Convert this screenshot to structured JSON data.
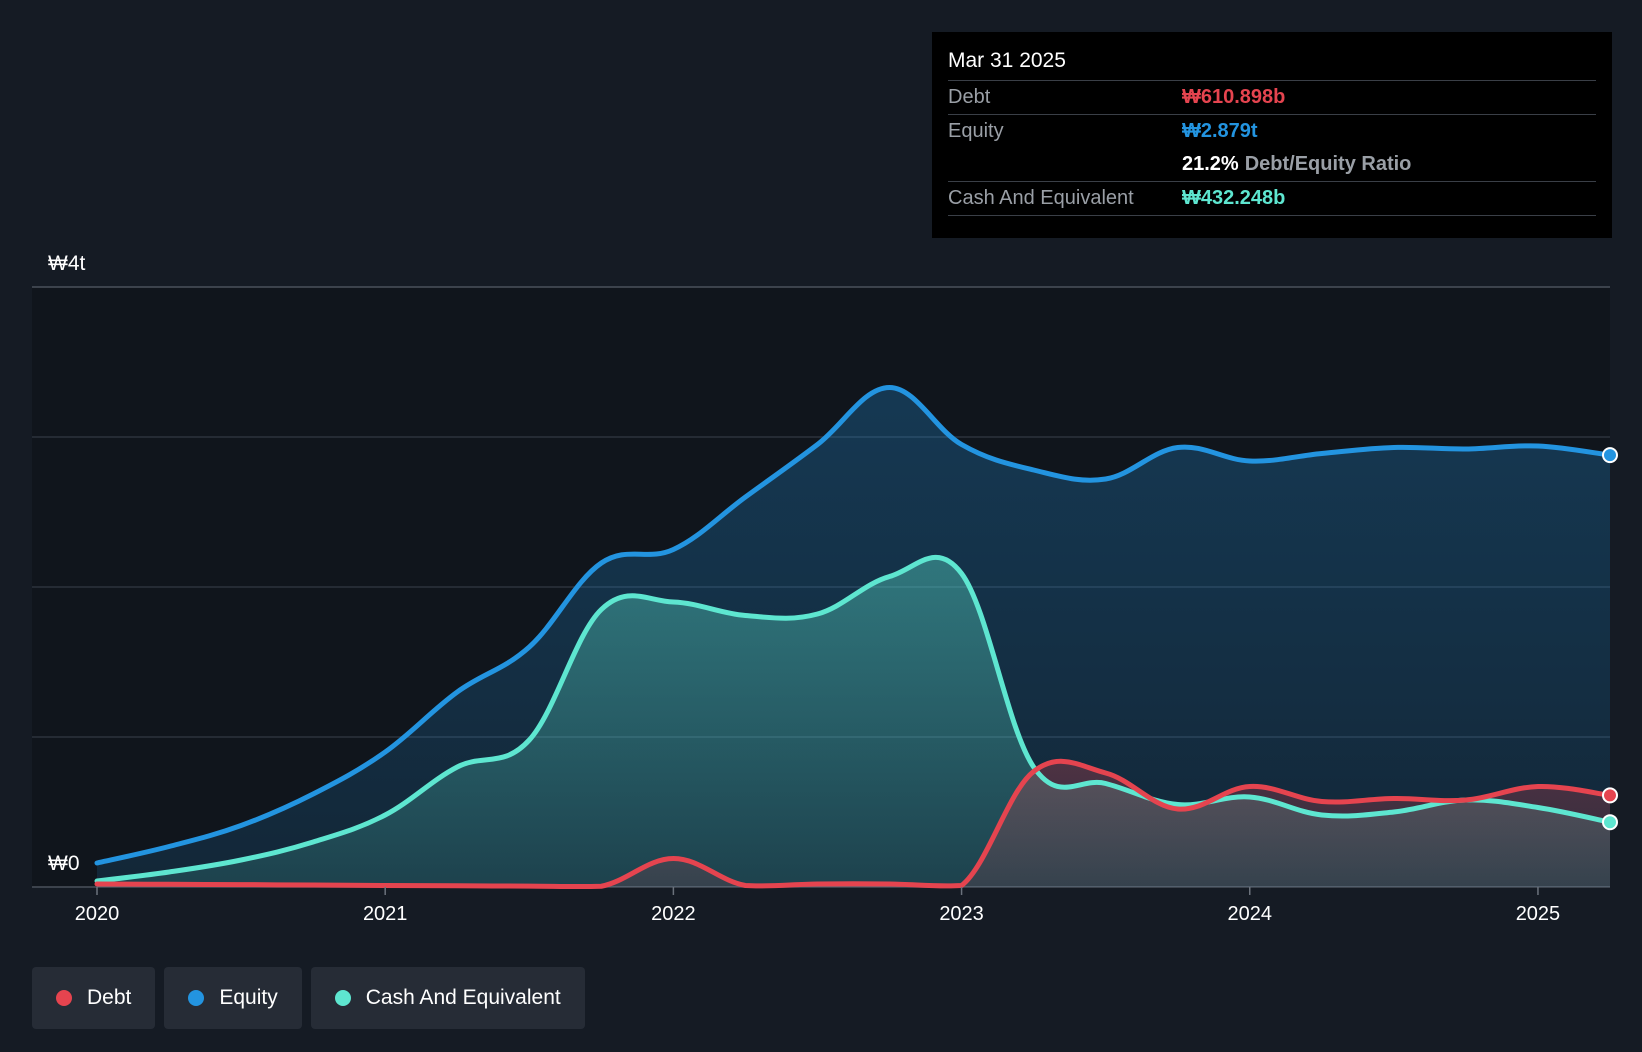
{
  "colors": {
    "debt": "#e5444f",
    "equity": "#2394e0",
    "cash": "#5ee6d0",
    "background": "#151b24",
    "grid": "#2c333d"
  },
  "tooltip": {
    "date": "Mar 31 2025",
    "debt_label": "Debt",
    "debt_value": "₩610.898b",
    "equity_label": "Equity",
    "equity_value": "₩2.879t",
    "ratio_value": "21.2%",
    "ratio_label": "Debt/Equity Ratio",
    "cash_label": "Cash And Equivalent",
    "cash_value": "₩432.248b"
  },
  "legend": [
    {
      "label": "Debt",
      "color": "#e5444f"
    },
    {
      "label": "Equity",
      "color": "#2394e0"
    },
    {
      "label": "Cash And Equivalent",
      "color": "#5ee6d0"
    }
  ],
  "chart_data": {
    "type": "area",
    "title": "",
    "xlabel": "",
    "ylabel": "",
    "y_unit": "₩ trillion",
    "ylim": [
      0,
      4
    ],
    "y_ticks": [
      0,
      1,
      2,
      3,
      4
    ],
    "y_tick_labels": {
      "0": "₩0",
      "4": "₩4t"
    },
    "xlim": [
      2020,
      2025.25
    ],
    "x_ticks": [
      2020,
      2021,
      2022,
      2023,
      2024,
      2025
    ],
    "x_tick_labels": [
      "2020",
      "2021",
      "2022",
      "2023",
      "2024",
      "2025"
    ],
    "series": [
      {
        "name": "Equity",
        "key": "equity",
        "x": [
          2020,
          2020.25,
          2020.5,
          2020.75,
          2021,
          2021.25,
          2021.5,
          2021.75,
          2022,
          2022.25,
          2022.5,
          2022.75,
          2023,
          2023.25,
          2023.5,
          2023.75,
          2024,
          2024.25,
          2024.5,
          2024.75,
          2025,
          2025.25
        ],
        "values": [
          0.16,
          0.27,
          0.41,
          0.62,
          0.9,
          1.3,
          1.6,
          2.16,
          2.25,
          2.6,
          2.95,
          3.33,
          2.95,
          2.78,
          2.72,
          2.93,
          2.84,
          2.89,
          2.93,
          2.92,
          2.94,
          2.879
        ]
      },
      {
        "name": "Cash And Equivalent",
        "key": "cash",
        "x": [
          2020,
          2020.25,
          2020.5,
          2020.75,
          2021,
          2021.25,
          2021.5,
          2021.75,
          2022,
          2022.25,
          2022.5,
          2022.75,
          2023,
          2023.25,
          2023.5,
          2023.75,
          2024,
          2024.25,
          2024.5,
          2024.75,
          2025,
          2025.25
        ],
        "values": [
          0.04,
          0.1,
          0.18,
          0.3,
          0.48,
          0.8,
          0.98,
          1.85,
          1.9,
          1.81,
          1.82,
          2.07,
          2.09,
          0.8,
          0.69,
          0.55,
          0.6,
          0.48,
          0.5,
          0.58,
          0.53,
          0.432
        ]
      },
      {
        "name": "Debt",
        "key": "debt",
        "x": [
          2020,
          2020.25,
          2020.5,
          2020.75,
          2021,
          2021.25,
          2021.5,
          2021.75,
          2022,
          2022.25,
          2022.5,
          2022.75,
          2023,
          2023.25,
          2023.5,
          2023.75,
          2024,
          2024.25,
          2024.5,
          2024.75,
          2025,
          2025.25
        ],
        "values": [
          0.02,
          0.018,
          0.016,
          0.013,
          0.01,
          0.008,
          0.006,
          0.005,
          0.19,
          0.01,
          0.02,
          0.02,
          0.01,
          0.77,
          0.76,
          0.52,
          0.67,
          0.57,
          0.59,
          0.58,
          0.67,
          0.611
        ]
      }
    ]
  }
}
